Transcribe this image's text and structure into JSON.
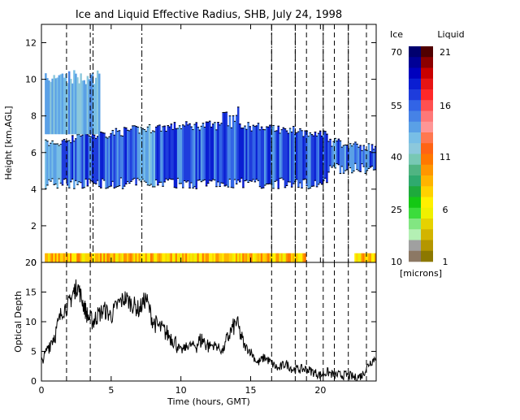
{
  "chart_data": [
    {
      "type": "heatmap",
      "title": "Ice and Liquid Effective Radius, SHB, July 24, 1998",
      "ylabel": "Height [km,AGL]",
      "xlim": [
        0,
        24
      ],
      "ylim": [
        0,
        13
      ],
      "yticks": [
        0,
        2,
        4,
        6,
        8,
        10,
        12
      ],
      "dashed_vlines_hours": [
        1.8,
        3.5,
        16.5,
        18.2,
        19.0,
        20.2,
        21.0,
        22.0,
        23.3
      ],
      "dashdot_vlines_hours": [
        3.7,
        7.2,
        16.5,
        18.2,
        20.2,
        22.0
      ],
      "ice_cloud_layer": {
        "main_deck": {
          "start_hour": 0.3,
          "end_hour": 24.0,
          "base_km": [
            4.0,
            4.6
          ],
          "top_km": [
            6.5,
            7.5
          ]
        },
        "upper_cirrus": {
          "start_hour": 0.3,
          "end_hour": 4.2,
          "base_km": 7.0,
          "top_km": 10.5
        },
        "dominant_radius_microns": [
          40,
          60
        ]
      },
      "liquid_cloud_layer": {
        "start_hour": 0.3,
        "end_hour": 24.0,
        "height_km": [
          0.0,
          0.5
        ],
        "dominant_radius_microns": [
          5,
          11
        ]
      }
    },
    {
      "type": "line",
      "xlabel": "Time (hours, GMT)",
      "ylabel": "Optical Depth",
      "xlim": [
        0,
        24
      ],
      "ylim": [
        0,
        20
      ],
      "xticks": [
        0,
        5,
        10,
        15,
        20
      ],
      "yticks": [
        0,
        5,
        10,
        15,
        20
      ],
      "series": [
        {
          "x": [
            0,
            0.5,
            1.0,
            1.5,
            2.0,
            2.3,
            2.6,
            3.0,
            3.3,
            3.7,
            4.0,
            4.5,
            5.0,
            5.5,
            6.0,
            6.5,
            7.0,
            7.5,
            8.0,
            8.5,
            9.0,
            9.5,
            10.0,
            10.5,
            11.0,
            11.5,
            12.0,
            12.5,
            13.0,
            13.5,
            14.0,
            14.5,
            15.0,
            15.5,
            16.0,
            16.5,
            17.0,
            17.5,
            18.0,
            18.5,
            19.0,
            19.5,
            20.0,
            20.5,
            21.0,
            21.5,
            22.0,
            22.5,
            23.0,
            23.5,
            24.0
          ],
          "values": [
            3,
            6,
            8,
            12,
            13,
            15,
            16,
            13,
            11,
            10,
            11,
            12,
            11,
            13,
            14,
            13,
            12,
            14,
            10,
            9,
            8,
            7,
            5,
            6,
            6,
            7,
            6,
            6,
            5,
            8,
            10,
            6,
            5,
            3,
            4,
            3,
            2,
            3,
            2,
            2,
            2,
            1.5,
            1,
            1.5,
            1,
            1,
            1,
            0.5,
            1,
            3,
            4
          ]
        }
      ]
    }
  ],
  "colorbar": {
    "header_ice": "Ice",
    "header_liquid": "Liquid",
    "ice_ticks": [
      "70",
      "55",
      "40",
      "25",
      "10"
    ],
    "liquid_ticks": [
      "21",
      "16",
      "11",
      "6",
      "1"
    ],
    "units": "[microns]",
    "ice_colors": [
      "#00006e",
      "#000096",
      "#0000be",
      "#0a1ed2",
      "#1e3cdc",
      "#3264e6",
      "#4682e6",
      "#5aa0e6",
      "#78bee6",
      "#8cc8dc",
      "#78c8b4",
      "#50b482",
      "#2faa6e",
      "#1eaa3c",
      "#14c814",
      "#3cdc3c",
      "#82e682",
      "#b4f0b4",
      "#a0a0a0",
      "#8c7864"
    ],
    "liquid_colors": [
      "#500000",
      "#8c0000",
      "#c80000",
      "#e61414",
      "#ff2828",
      "#ff5050",
      "#ff7878",
      "#ff9696",
      "#ff7850",
      "#ff6414",
      "#ff7800",
      "#ff9600",
      "#ffb400",
      "#ffd200",
      "#fff000",
      "#f0f000",
      "#e6d200",
      "#d2b400",
      "#b49600",
      "#8c7800"
    ]
  }
}
